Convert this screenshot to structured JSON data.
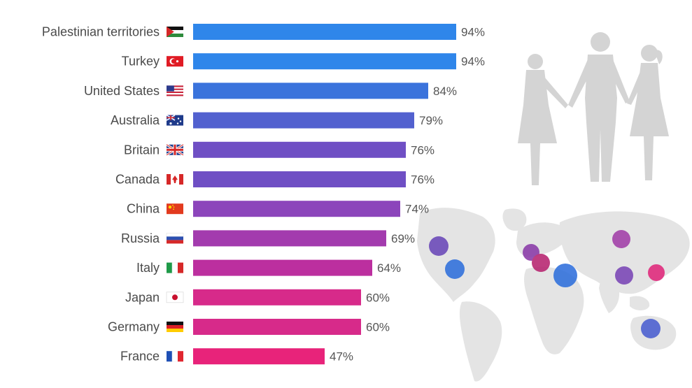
{
  "chart_data": {
    "type": "bar",
    "orientation": "horizontal",
    "title": "",
    "xlabel": "",
    "ylabel": "",
    "xlim": [
      0,
      100
    ],
    "grid": false,
    "legend": "none",
    "categories": [
      "Palestinian territories",
      "Turkey",
      "United States",
      "Australia",
      "Britain",
      "Canada",
      "China",
      "Russia",
      "Italy",
      "Japan",
      "Germany",
      "France"
    ],
    "values": [
      94,
      94,
      84,
      79,
      76,
      76,
      74,
      69,
      64,
      60,
      60,
      47
    ],
    "value_labels": [
      "94%",
      "94%",
      "84%",
      "79%",
      "76%",
      "76%",
      "74%",
      "69%",
      "64%",
      "60%",
      "60%",
      "47%"
    ],
    "bar_colors": [
      "#2f86ea",
      "#2f86ea",
      "#3a73dc",
      "#5261cf",
      "#6f4fc4",
      "#6f4fc4",
      "#8c45bb",
      "#a33bae",
      "#bc2f9f",
      "#d72a8a",
      "#d72a8a",
      "#e8237a"
    ],
    "flag_icons": [
      "palestine-flag-icon",
      "turkey-flag-icon",
      "usa-flag-icon",
      "australia-flag-icon",
      "uk-flag-icon",
      "canada-flag-icon",
      "china-flag-icon",
      "russia-flag-icon",
      "italy-flag-icon",
      "japan-flag-icon",
      "germany-flag-icon",
      "france-flag-icon"
    ]
  },
  "decorations": {
    "couple_silhouette_icon": "silhouette-people-icon",
    "map_icon": "world-map-icon",
    "map_bubble_colors": [
      "#6a48b8",
      "#2f6fdc",
      "#8a3aa8",
      "#b7236f",
      "#2f6fdc",
      "#a23fa8",
      "#7a45b6",
      "#e0287b",
      "#4a5ed0"
    ]
  }
}
